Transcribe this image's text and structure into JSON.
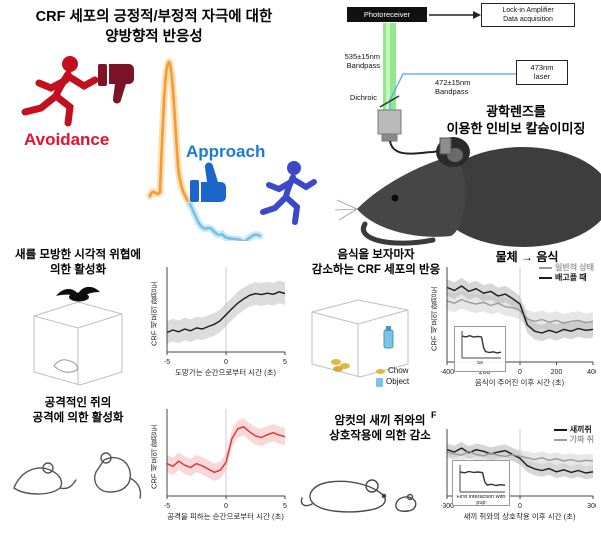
{
  "title": {
    "line1": "CRF 세포의 긍정적/부정적 자극에 대한",
    "line2": "양방향적 반응성"
  },
  "behavior": {
    "avoidance_label": "Avoidance",
    "avoidance_color": "#e8112d",
    "approach_label": "Approach",
    "approach_color": "#1e7ad4"
  },
  "photometry": {
    "photoreceiver_label": "Photoreceiver",
    "lockin_line1": "Lock-in Amplifier",
    "lockin_line2": "Data acquisition",
    "green_bandpass_line1": "535±15nm",
    "green_bandpass_line2": "Bandpass",
    "laser_line1": "473nm",
    "laser_line2": "laser",
    "blue_bandpass_line1": "472±15nm",
    "blue_bandpass_line2": "Bandpass",
    "dichroic_label": "Dichroic",
    "caption_line1": "광학렌즈를",
    "caption_line2": "이용한 인비보 칼슘이미징"
  },
  "panels": {
    "bird": {
      "caption_line1": "새를 모방한 시각적 위협에",
      "caption_line2": "의한 활성화"
    },
    "attack": {
      "caption_line1": "공격적인 쥐의",
      "caption_line2": "공격에 의한 활성화"
    },
    "food": {
      "caption_line1": "음식을 보자마자",
      "caption_line2": "감소하는 CRF 세포의 반응",
      "chow_label": "Chow",
      "chow_color": "#e0b83f",
      "object_label": "Object",
      "object_color": "#7cc3e8",
      "chart_title": "물체 → 음식"
    },
    "pup": {
      "caption_line1": "암컷의 새끼 쥐와의",
      "caption_line2": "상호작용에 의한 감소",
      "panel_letter": "F"
    }
  },
  "chart_data": [
    {
      "type": "line",
      "ylabel": "CRF 세포의 활성도",
      "xlabel": "도망가는 순간으로부터 시간 (초)",
      "xlim": [
        -5,
        5
      ],
      "ylim": [
        -0.6,
        1.8
      ],
      "xticks": [
        -5,
        0,
        5
      ],
      "vline": 0,
      "series": [
        {
          "name": "",
          "color": "#1a1a1a",
          "band": "#c0c0c0",
          "bw": 0.32,
          "x": [
            -5,
            -4.5,
            -4,
            -3.5,
            -3,
            -2.5,
            -2,
            -1.5,
            -1,
            -0.5,
            0,
            0.5,
            1,
            1.5,
            2,
            2.5,
            3,
            3.5,
            4,
            4.5,
            5
          ],
          "y": [
            -0.05,
            0.02,
            -0.03,
            0.05,
            0,
            0.08,
            0.05,
            0.12,
            0.18,
            0.28,
            0.45,
            0.62,
            0.78,
            0.9,
            1,
            1.05,
            1.02,
            1.06,
            1.03,
            1.1,
            1.05
          ]
        }
      ]
    },
    {
      "type": "line",
      "ylabel": "CRF 세포의 활성도",
      "xlabel": "공격을 피하는 순간으로부터 시간 (초)",
      "xlim": [
        -5,
        5
      ],
      "ylim": [
        -0.7,
        1.5
      ],
      "xticks": [
        -5,
        0,
        5
      ],
      "vline": 0,
      "series": [
        {
          "name": "",
          "color": "#e03030",
          "band": "#f3b8b8",
          "bw": 0.22,
          "x": [
            -5,
            -4.5,
            -4,
            -3.5,
            -3,
            -2.5,
            -2,
            -1.5,
            -1,
            -0.5,
            0,
            0.5,
            1,
            1.5,
            2,
            2.5,
            3,
            3.5,
            4,
            4.5,
            5
          ],
          "y": [
            0.12,
            0.05,
            0.18,
            0.08,
            0.02,
            0.12,
            0.06,
            -0.02,
            -0.1,
            -0.05,
            0.15,
            0.75,
            1,
            1.05,
            0.92,
            0.82,
            0.78,
            0.85,
            0.9,
            0.84,
            0.8
          ]
        }
      ]
    },
    {
      "type": "line",
      "ylabel": "CRF 세포의 활성도",
      "xlabel": "음식이 주어진 이후 시간 (초)",
      "xlim": [
        -400,
        400
      ],
      "ylim": [
        -0.8,
        1.3
      ],
      "xticks": [
        -400,
        -200,
        0,
        200,
        400
      ],
      "vline": 0,
      "inset_label": "5s",
      "series": [
        {
          "name": "일반적 상태",
          "color": "#9a9a9a",
          "band": "#d2d2d2",
          "bw": 0.2,
          "x": [
            -400,
            -360,
            -320,
            -280,
            -240,
            -200,
            -160,
            -120,
            -80,
            -40,
            0,
            40,
            80,
            120,
            160,
            200,
            240,
            280,
            320,
            360,
            400
          ],
          "y": [
            0.55,
            0.5,
            0.58,
            0.52,
            0.48,
            0.52,
            0.45,
            0.5,
            0.42,
            0.4,
            0.34,
            0.15,
            0.1,
            0.14,
            0.08,
            0.12,
            0.06,
            0.1,
            0.12,
            0.07,
            0.1
          ]
        },
        {
          "name": "배고플 때",
          "color": "#1a1a1a",
          "band": "#b5b5b5",
          "bw": 0.18,
          "x": [
            -400,
            -360,
            -320,
            -280,
            -240,
            -200,
            -160,
            -120,
            -80,
            -40,
            0,
            40,
            80,
            120,
            160,
            200,
            240,
            280,
            320,
            360,
            400
          ],
          "y": [
            0.85,
            0.78,
            0.88,
            0.76,
            0.82,
            0.72,
            0.76,
            0.66,
            0.7,
            0.6,
            0.48,
            0.02,
            -0.12,
            -0.16,
            -0.1,
            -0.15,
            -0.08,
            -0.12,
            -0.06,
            -0.1,
            -0.08
          ]
        }
      ]
    },
    {
      "type": "line",
      "ylabel": "",
      "xlabel": "새끼 쥐와의 상호작용 이후 시간 (초)",
      "xlim": [
        -300,
        300
      ],
      "ylim": [
        -0.9,
        1.2
      ],
      "xticks": [
        -300,
        0,
        300
      ],
      "vline": 0,
      "inset_label": "First interaction with pup",
      "series": [
        {
          "name": "새끼쥐",
          "color": "#1a1a1a",
          "band": "#b5b5b5",
          "bw": 0.2,
          "x": [
            -300,
            -270,
            -240,
            -210,
            -180,
            -150,
            -120,
            -90,
            -60,
            -30,
            0,
            30,
            60,
            90,
            120,
            150,
            180,
            210,
            240,
            270,
            300
          ],
          "y": [
            0.55,
            0.48,
            0.6,
            0.45,
            0.55,
            0.5,
            0.42,
            0.48,
            0.52,
            0.4,
            0.28,
            0.05,
            -0.05,
            -0.1,
            -0.04,
            -0.14,
            -0.08,
            -0.16,
            -0.1,
            -0.18,
            -0.14
          ]
        },
        {
          "name": "가짜 쥐",
          "color": "#9a9a9a",
          "band": "#d2d2d2",
          "bw": 0.2,
          "x": [
            -300,
            -270,
            -240,
            -210,
            -180,
            -150,
            -120,
            -90,
            -60,
            -30,
            0,
            30,
            60,
            90,
            120,
            150,
            180,
            210,
            240,
            270,
            300
          ],
          "y": [
            0.48,
            0.42,
            0.38,
            0.5,
            0.4,
            0.36,
            0.44,
            0.38,
            0.34,
            0.4,
            0.34,
            0.3,
            0.24,
            0.3,
            0.22,
            0.27,
            0.2,
            0.24,
            0.18,
            0.22,
            0.2
          ]
        }
      ]
    },
    {
      "type": "line",
      "xlim": [
        0,
        10
      ],
      "ylim": [
        -0.9,
        1.1
      ],
      "inset_label": "5s",
      "series": [
        {
          "name": "",
          "color": "#333333",
          "x": [
            0,
            1,
            2,
            3,
            4,
            5,
            5.5,
            6,
            7,
            8,
            9,
            10
          ],
          "y": [
            0.72,
            0.66,
            0.75,
            0.65,
            0.7,
            0.66,
            -0.1,
            -0.42,
            -0.5,
            -0.44,
            -0.52,
            -0.47
          ]
        }
      ]
    },
    {
      "type": "line",
      "xlim": [
        0,
        10
      ],
      "ylim": [
        -0.9,
        1.1
      ],
      "inset_label": "First interaction with pup",
      "series": [
        {
          "name": "",
          "color": "#333333",
          "x": [
            0,
            1,
            2,
            3,
            4,
            5,
            5.5,
            6,
            7,
            8,
            9,
            10
          ],
          "y": [
            0.58,
            0.52,
            0.62,
            0.55,
            0.58,
            0.54,
            -0.15,
            -0.38,
            -0.33,
            -0.42,
            -0.36,
            -0.4
          ]
        }
      ]
    }
  ]
}
